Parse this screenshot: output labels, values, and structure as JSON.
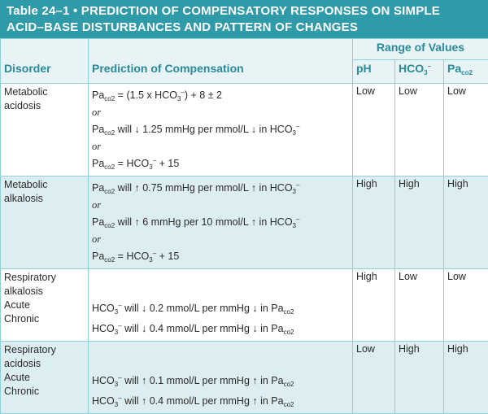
{
  "title": {
    "line1": "Table 24–1  •  PREDICTION OF COMPENSATORY RESPONSES ON SIMPLE",
    "line2": "ACID–BASE DISTURBANCES AND PATTERN OF CHANGES"
  },
  "header": {
    "range": "Range of Values",
    "disorder": "Disorder",
    "prediction": "Prediction of Compensation",
    "ph": "pH",
    "hco3": "HCO",
    "hco3_sub": "3",
    "hco3_sup": "–",
    "paco2": "Pa",
    "paco2_sub": "co2"
  },
  "rows": [
    {
      "disorder": [
        "Metabolic",
        "acidosis"
      ],
      "ph": "Low",
      "hco3": "Low",
      "paco2": "Low",
      "p1": "Pa",
      "p1s": "co2",
      "p1t": " = (1.5 x HCO",
      "p1s2": "3",
      "p1sup": "–",
      "p1e": ") + 8 ± 2",
      "or": "or",
      "p2": "Pa",
      "p2s": "co2",
      "p2t": " will ↓ 1.25 mmHg per mmol/L ↓ in HCO",
      "p2s2": "3",
      "p2sup": "–",
      "p3": "Pa",
      "p3s": "co2",
      "p3t": " = HCO",
      "p3s2": "3",
      "p3sup": "–",
      "p3e": " + 15"
    },
    {
      "disorder": [
        "Metabolic",
        "alkalosis"
      ],
      "ph": "High",
      "hco3": "High",
      "paco2": "High",
      "p1": "Pa",
      "p1s": "co2",
      "p1t": " will ↑ 0.75 mmHg per mmol/L ↑ in HCO",
      "p1s2": "3",
      "p1sup": "–",
      "or": "or",
      "p2": "Pa",
      "p2s": "co2",
      "p2t": " will ↑ 6 mmHg per 10 mmol/L ↑ in HCO",
      "p2s2": "3",
      "p2sup": "–",
      "p3": "Pa",
      "p3s": "co2",
      "p3t": " = HCO",
      "p3s2": "3",
      "p3sup": "–",
      "p3e": " + 15"
    },
    {
      "disorder": [
        "Respiratory",
        "alkalosis",
        "Acute",
        "Chronic"
      ],
      "ph": "High",
      "hco3": "Low",
      "paco2": "Low",
      "a1": "HCO",
      "a1s": "3",
      "a1sup": "–",
      "a1t": " will ↓ 0.2 mmol/L per mmHg ↓ in Pa",
      "a1e": "co2",
      "a2": "HCO",
      "a2s": "3",
      "a2sup": "–",
      "a2t": " will ↓ 0.4 mmol/L per mmHg ↓ in Pa",
      "a2e": "co2"
    },
    {
      "disorder": [
        "Respiratory",
        "acidosis",
        "Acute",
        "Chronic"
      ],
      "ph": "Low",
      "hco3": "High",
      "paco2": "High",
      "a1": "HCO",
      "a1s": "3",
      "a1sup": "–",
      "a1t": " will ↑ 0.1 mmol/L per mmHg ↑ in Pa",
      "a1e": "co2",
      "a2": "HCO",
      "a2s": "3",
      "a2sup": "–",
      "a2t": " will ↑ 0.4 mmol/L per mmHg ↑ in Pa",
      "a2e": "co2"
    }
  ],
  "colors": {
    "title_bg": "#2f9aa8",
    "header_text": "#2a8a99",
    "shaded_row": "#ddeef2",
    "rule": "#8fcfd6"
  }
}
